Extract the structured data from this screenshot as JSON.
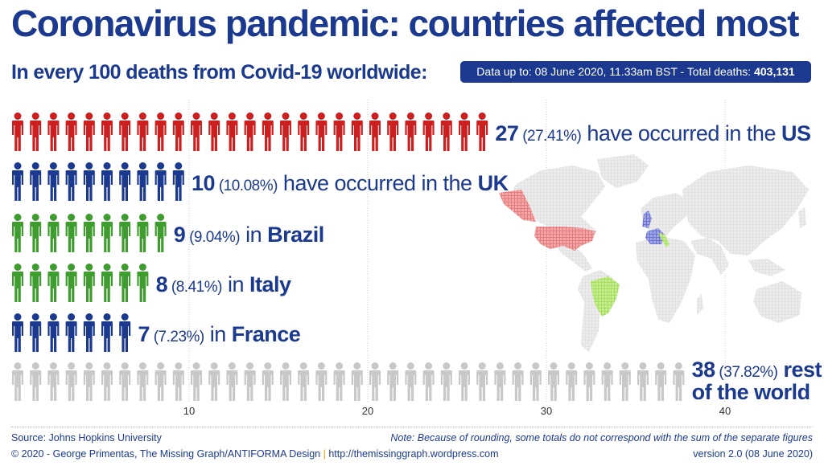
{
  "header": {
    "title": "Coronavirus pandemic: countries affected most",
    "subtitle": "In every 100 deaths from Covid-19 worldwide:",
    "badge_prefix": "Data up to: 08 June 2020, 11.33am BST - Total deaths: ",
    "badge_total": "403,131"
  },
  "chart_data": {
    "type": "bar",
    "subtype": "pictogram",
    "unit": "deaths per 100 worldwide deaths",
    "xlim": [
      0,
      45
    ],
    "x_ticks": [
      10,
      20,
      30,
      40
    ],
    "grid": true,
    "rows": [
      {
        "key": "us",
        "value": 27,
        "pct": "(27.41%)",
        "color": "#cc1f1f",
        "label_pre": " have occurred in the ",
        "label_name": "US"
      },
      {
        "key": "uk",
        "value": 10,
        "pct": "(10.08%)",
        "color": "#1b3a8f",
        "label_pre": " have occurred in the ",
        "label_name": "UK"
      },
      {
        "key": "brazil",
        "value": 9,
        "pct": "(9.04%)",
        "color": "#3f9c2f",
        "label_pre": " in ",
        "label_name": "Brazil"
      },
      {
        "key": "italy",
        "value": 8,
        "pct": "(8.41%)",
        "color": "#3f9c2f",
        "label_pre": " in ",
        "label_name": "Italy"
      },
      {
        "key": "france",
        "value": 7,
        "pct": "(7.23%)",
        "color": "#1b3a8f",
        "label_pre": " in ",
        "label_name": "France"
      },
      {
        "key": "rest",
        "value": 38,
        "pct": "(37.82%)",
        "color": "#c8c8c8",
        "label_pre": "",
        "label_name": "rest of the world"
      }
    ],
    "map_highlights": {
      "usa": "#e8797a",
      "uk": "#6b74d2",
      "france": "#6b74d2",
      "italy": "#a6e05a",
      "brazil": "#a6e05a",
      "rest": "#e2e2e2"
    }
  },
  "footer": {
    "source": "Source:  Johns Hopkins University",
    "copyright": "© 2020 - George Primentas, The Missing Graph/ANTIFORMA Design",
    "separator": "|",
    "url": "http://themissinggraph.wordpress.com",
    "note": "Note: Because of rounding, some totals do not correspond with the sum of the separate figures",
    "version": "version 2.0 (08 June 2020)"
  }
}
